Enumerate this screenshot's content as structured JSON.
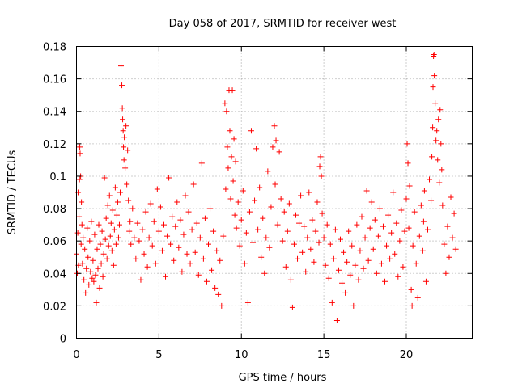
{
  "chart_data": {
    "type": "scatter",
    "title": "Day 058 of 2017, SRMTID for receiver west",
    "xlabel": "GPS time / hours",
    "ylabel": "SRMTID / TECUs",
    "xlim": [
      0,
      24
    ],
    "ylim": [
      0,
      0.18
    ],
    "x_ticks": [
      0,
      5,
      10,
      15,
      20
    ],
    "x_tick_labels": [
      "0",
      "5",
      "10",
      "15",
      "20"
    ],
    "y_ticks": [
      0,
      0.02,
      0.04,
      0.06,
      0.08,
      0.1,
      0.12,
      0.14,
      0.16,
      0.18
    ],
    "y_tick_labels": [
      "0",
      "0.02",
      "0.04",
      "0.06",
      "0.08",
      "0.1",
      "0.12",
      "0.14",
      "0.16",
      "0.18"
    ],
    "grid": true,
    "marker": "+",
    "series_color": "#ff0000",
    "series": [
      {
        "name": "SRMTID",
        "points": [
          [
            0.0,
            0.052
          ],
          [
            0.05,
            0.04
          ],
          [
            0.08,
            0.065
          ],
          [
            0.1,
            0.09
          ],
          [
            0.12,
            0.045
          ],
          [
            0.15,
            0.075
          ],
          [
            0.18,
            0.098
          ],
          [
            0.2,
            0.118
          ],
          [
            0.22,
            0.114
          ],
          [
            0.25,
            0.1
          ],
          [
            0.28,
            0.058
          ],
          [
            0.3,
            0.084
          ],
          [
            0.33,
            0.07
          ],
          [
            0.36,
            0.046
          ],
          [
            0.4,
            0.062
          ],
          [
            0.45,
            0.036
          ],
          [
            0.5,
            0.055
          ],
          [
            0.55,
            0.028
          ],
          [
            0.6,
            0.043
          ],
          [
            0.65,
            0.068
          ],
          [
            0.7,
            0.05
          ],
          [
            0.75,
            0.033
          ],
          [
            0.8,
            0.06
          ],
          [
            0.85,
            0.041
          ],
          [
            0.9,
            0.072
          ],
          [
            0.95,
            0.037
          ],
          [
            1.0,
            0.048
          ],
          [
            1.05,
            0.035
          ],
          [
            1.1,
            0.064
          ],
          [
            1.15,
            0.039
          ],
          [
            1.2,
            0.022
          ],
          [
            1.25,
            0.055
          ],
          [
            1.3,
            0.043
          ],
          [
            1.35,
            0.07
          ],
          [
            1.4,
            0.031
          ],
          [
            1.45,
            0.058
          ],
          [
            1.5,
            0.046
          ],
          [
            1.55,
            0.066
          ],
          [
            1.6,
            0.038
          ],
          [
            1.65,
            0.052
          ],
          [
            1.7,
            0.099
          ],
          [
            1.75,
            0.061
          ],
          [
            1.8,
            0.074
          ],
          [
            1.85,
            0.049
          ],
          [
            1.9,
            0.082
          ],
          [
            1.95,
            0.057
          ],
          [
            2.0,
            0.088
          ],
          [
            2.05,
            0.063
          ],
          [
            2.1,
            0.071
          ],
          [
            2.15,
            0.054
          ],
          [
            2.2,
            0.079
          ],
          [
            2.25,
            0.045
          ],
          [
            2.3,
            0.067
          ],
          [
            2.35,
            0.093
          ],
          [
            2.4,
            0.058
          ],
          [
            2.45,
            0.076
          ],
          [
            2.5,
            0.084
          ],
          [
            2.55,
            0.062
          ],
          [
            2.6,
            0.07
          ],
          [
            2.65,
            0.09
          ],
          [
            2.7,
            0.168
          ],
          [
            2.75,
            0.156
          ],
          [
            2.78,
            0.142
          ],
          [
            2.8,
            0.135
          ],
          [
            2.83,
            0.128
          ],
          [
            2.85,
            0.118
          ],
          [
            2.88,
            0.11
          ],
          [
            2.9,
            0.124
          ],
          [
            2.95,
            0.105
          ],
          [
            3.0,
            0.131
          ],
          [
            3.05,
            0.095
          ],
          [
            3.1,
            0.116
          ],
          [
            3.15,
            0.085
          ],
          [
            3.2,
            0.066
          ],
          [
            3.25,
            0.072
          ],
          [
            3.3,
            0.058
          ],
          [
            3.4,
            0.08
          ],
          [
            3.5,
            0.062
          ],
          [
            3.6,
            0.049
          ],
          [
            3.7,
            0.071
          ],
          [
            3.8,
            0.06
          ],
          [
            3.9,
            0.036
          ],
          [
            4.0,
            0.067
          ],
          [
            4.1,
            0.052
          ],
          [
            4.2,
            0.078
          ],
          [
            4.3,
            0.044
          ],
          [
            4.4,
            0.062
          ],
          [
            4.5,
            0.083
          ],
          [
            4.6,
            0.057
          ],
          [
            4.7,
            0.072
          ],
          [
            4.8,
            0.046
          ],
          [
            4.9,
            0.092
          ],
          [
            5.0,
            0.066
          ],
          [
            5.1,
            0.081
          ],
          [
            5.2,
            0.054
          ],
          [
            5.3,
            0.07
          ],
          [
            5.4,
            0.038
          ],
          [
            5.5,
            0.063
          ],
          [
            5.6,
            0.099
          ],
          [
            5.7,
            0.058
          ],
          [
            5.8,
            0.075
          ],
          [
            5.9,
            0.048
          ],
          [
            6.0,
            0.069
          ],
          [
            6.1,
            0.084
          ],
          [
            6.2,
            0.056
          ],
          [
            6.3,
            0.073
          ],
          [
            6.4,
            0.041
          ],
          [
            6.5,
            0.064
          ],
          [
            6.6,
            0.088
          ],
          [
            6.7,
            0.052
          ],
          [
            6.8,
            0.078
          ],
          [
            6.9,
            0.046
          ],
          [
            7.0,
            0.067
          ],
          [
            7.1,
            0.095
          ],
          [
            7.2,
            0.053
          ],
          [
            7.3,
            0.071
          ],
          [
            7.4,
            0.039
          ],
          [
            7.5,
            0.062
          ],
          [
            7.6,
            0.108
          ],
          [
            7.7,
            0.049
          ],
          [
            7.8,
            0.074
          ],
          [
            7.9,
            0.035
          ],
          [
            8.0,
            0.058
          ],
          [
            8.1,
            0.08
          ],
          [
            8.2,
            0.042
          ],
          [
            8.3,
            0.066
          ],
          [
            8.4,
            0.031
          ],
          [
            8.5,
            0.054
          ],
          [
            8.6,
            0.027
          ],
          [
            8.7,
            0.048
          ],
          [
            8.8,
            0.02
          ],
          [
            8.9,
            0.063
          ],
          [
            9.0,
            0.145
          ],
          [
            9.05,
            0.092
          ],
          [
            9.1,
            0.14
          ],
          [
            9.15,
            0.118
          ],
          [
            9.2,
            0.105
          ],
          [
            9.25,
            0.153
          ],
          [
            9.3,
            0.128
          ],
          [
            9.35,
            0.086
          ],
          [
            9.4,
            0.112
          ],
          [
            9.45,
            0.153
          ],
          [
            9.5,
            0.097
          ],
          [
            9.55,
            0.123
          ],
          [
            9.6,
            0.076
          ],
          [
            9.65,
            0.109
          ],
          [
            9.7,
            0.068
          ],
          [
            9.8,
            0.084
          ],
          [
            9.9,
            0.057
          ],
          [
            10.0,
            0.073
          ],
          [
            10.1,
            0.091
          ],
          [
            10.2,
            0.046
          ],
          [
            10.3,
            0.065
          ],
          [
            10.4,
            0.022
          ],
          [
            10.5,
            0.078
          ],
          [
            10.6,
            0.128
          ],
          [
            10.7,
            0.059
          ],
          [
            10.8,
            0.085
          ],
          [
            10.9,
            0.117
          ],
          [
            11.0,
            0.067
          ],
          [
            11.1,
            0.093
          ],
          [
            11.2,
            0.05
          ],
          [
            11.3,
            0.074
          ],
          [
            11.4,
            0.04
          ],
          [
            11.5,
            0.062
          ],
          [
            11.6,
            0.103
          ],
          [
            11.7,
            0.056
          ],
          [
            11.8,
            0.081
          ],
          [
            11.9,
            0.118
          ],
          [
            12.0,
            0.131
          ],
          [
            12.05,
            0.095
          ],
          [
            12.1,
            0.122
          ],
          [
            12.2,
            0.07
          ],
          [
            12.3,
            0.115
          ],
          [
            12.4,
            0.086
          ],
          [
            12.5,
            0.06
          ],
          [
            12.6,
            0.078
          ],
          [
            12.7,
            0.044
          ],
          [
            12.8,
            0.066
          ],
          [
            12.9,
            0.083
          ],
          [
            13.0,
            0.036
          ],
          [
            13.1,
            0.019
          ],
          [
            13.2,
            0.058
          ],
          [
            13.3,
            0.076
          ],
          [
            13.4,
            0.049
          ],
          [
            13.5,
            0.071
          ],
          [
            13.6,
            0.088
          ],
          [
            13.7,
            0.053
          ],
          [
            13.8,
            0.069
          ],
          [
            13.9,
            0.041
          ],
          [
            14.0,
            0.062
          ],
          [
            14.1,
            0.09
          ],
          [
            14.2,
            0.055
          ],
          [
            14.3,
            0.073
          ],
          [
            14.4,
            0.047
          ],
          [
            14.5,
            0.066
          ],
          [
            14.6,
            0.084
          ],
          [
            14.7,
            0.059
          ],
          [
            14.75,
            0.106
          ],
          [
            14.8,
            0.112
          ],
          [
            14.85,
            0.1
          ],
          [
            14.9,
            0.077
          ],
          [
            15.0,
            0.062
          ],
          [
            15.1,
            0.045
          ],
          [
            15.2,
            0.07
          ],
          [
            15.3,
            0.037
          ],
          [
            15.4,
            0.058
          ],
          [
            15.5,
            0.022
          ],
          [
            15.6,
            0.049
          ],
          [
            15.7,
            0.067
          ],
          [
            15.8,
            0.011
          ],
          [
            15.9,
            0.042
          ],
          [
            16.0,
            0.061
          ],
          [
            16.1,
            0.034
          ],
          [
            16.2,
            0.053
          ],
          [
            16.3,
            0.028
          ],
          [
            16.4,
            0.047
          ],
          [
            16.5,
            0.066
          ],
          [
            16.6,
            0.039
          ],
          [
            16.7,
            0.057
          ],
          [
            16.8,
            0.02
          ],
          [
            16.9,
            0.045
          ],
          [
            17.0,
            0.07
          ],
          [
            17.1,
            0.036
          ],
          [
            17.2,
            0.054
          ],
          [
            17.3,
            0.075
          ],
          [
            17.4,
            0.043
          ],
          [
            17.5,
            0.062
          ],
          [
            17.6,
            0.091
          ],
          [
            17.7,
            0.048
          ],
          [
            17.8,
            0.068
          ],
          [
            17.9,
            0.084
          ],
          [
            18.0,
            0.055
          ],
          [
            18.1,
            0.073
          ],
          [
            18.2,
            0.04
          ],
          [
            18.3,
            0.063
          ],
          [
            18.4,
            0.08
          ],
          [
            18.5,
            0.046
          ],
          [
            18.6,
            0.069
          ],
          [
            18.7,
            0.035
          ],
          [
            18.8,
            0.057
          ],
          [
            18.9,
            0.076
          ],
          [
            19.0,
            0.049
          ],
          [
            19.1,
            0.065
          ],
          [
            19.2,
            0.09
          ],
          [
            19.3,
            0.052
          ],
          [
            19.4,
            0.071
          ],
          [
            19.5,
            0.038
          ],
          [
            19.6,
            0.06
          ],
          [
            19.7,
            0.079
          ],
          [
            19.8,
            0.044
          ],
          [
            19.9,
            0.066
          ],
          [
            20.0,
            0.086
          ],
          [
            20.05,
            0.12
          ],
          [
            20.1,
            0.108
          ],
          [
            20.15,
            0.068
          ],
          [
            20.2,
            0.094
          ],
          [
            20.3,
            0.03
          ],
          [
            20.35,
            0.02
          ],
          [
            20.4,
            0.057
          ],
          [
            20.5,
            0.078
          ],
          [
            20.6,
            0.046
          ],
          [
            20.7,
            0.025
          ],
          [
            20.8,
            0.063
          ],
          [
            20.9,
            0.082
          ],
          [
            21.0,
            0.054
          ],
          [
            21.05,
            0.072
          ],
          [
            21.1,
            0.091
          ],
          [
            21.2,
            0.035
          ],
          [
            21.3,
            0.067
          ],
          [
            21.4,
            0.098
          ],
          [
            21.5,
            0.085
          ],
          [
            21.55,
            0.112
          ],
          [
            21.6,
            0.13
          ],
          [
            21.62,
            0.155
          ],
          [
            21.65,
            0.174
          ],
          [
            21.68,
            0.175
          ],
          [
            21.7,
            0.162
          ],
          [
            21.75,
            0.145
          ],
          [
            21.8,
            0.122
          ],
          [
            21.85,
            0.128
          ],
          [
            21.9,
            0.11
          ],
          [
            21.95,
            0.135
          ],
          [
            22.0,
            0.096
          ],
          [
            22.05,
            0.141
          ],
          [
            22.1,
            0.12
          ],
          [
            22.15,
            0.104
          ],
          [
            22.2,
            0.082
          ],
          [
            22.3,
            0.058
          ],
          [
            22.4,
            0.04
          ],
          [
            22.5,
            0.069
          ],
          [
            22.6,
            0.05
          ],
          [
            22.7,
            0.087
          ],
          [
            22.8,
            0.062
          ],
          [
            22.9,
            0.077
          ],
          [
            23.0,
            0.055
          ]
        ]
      }
    ]
  }
}
